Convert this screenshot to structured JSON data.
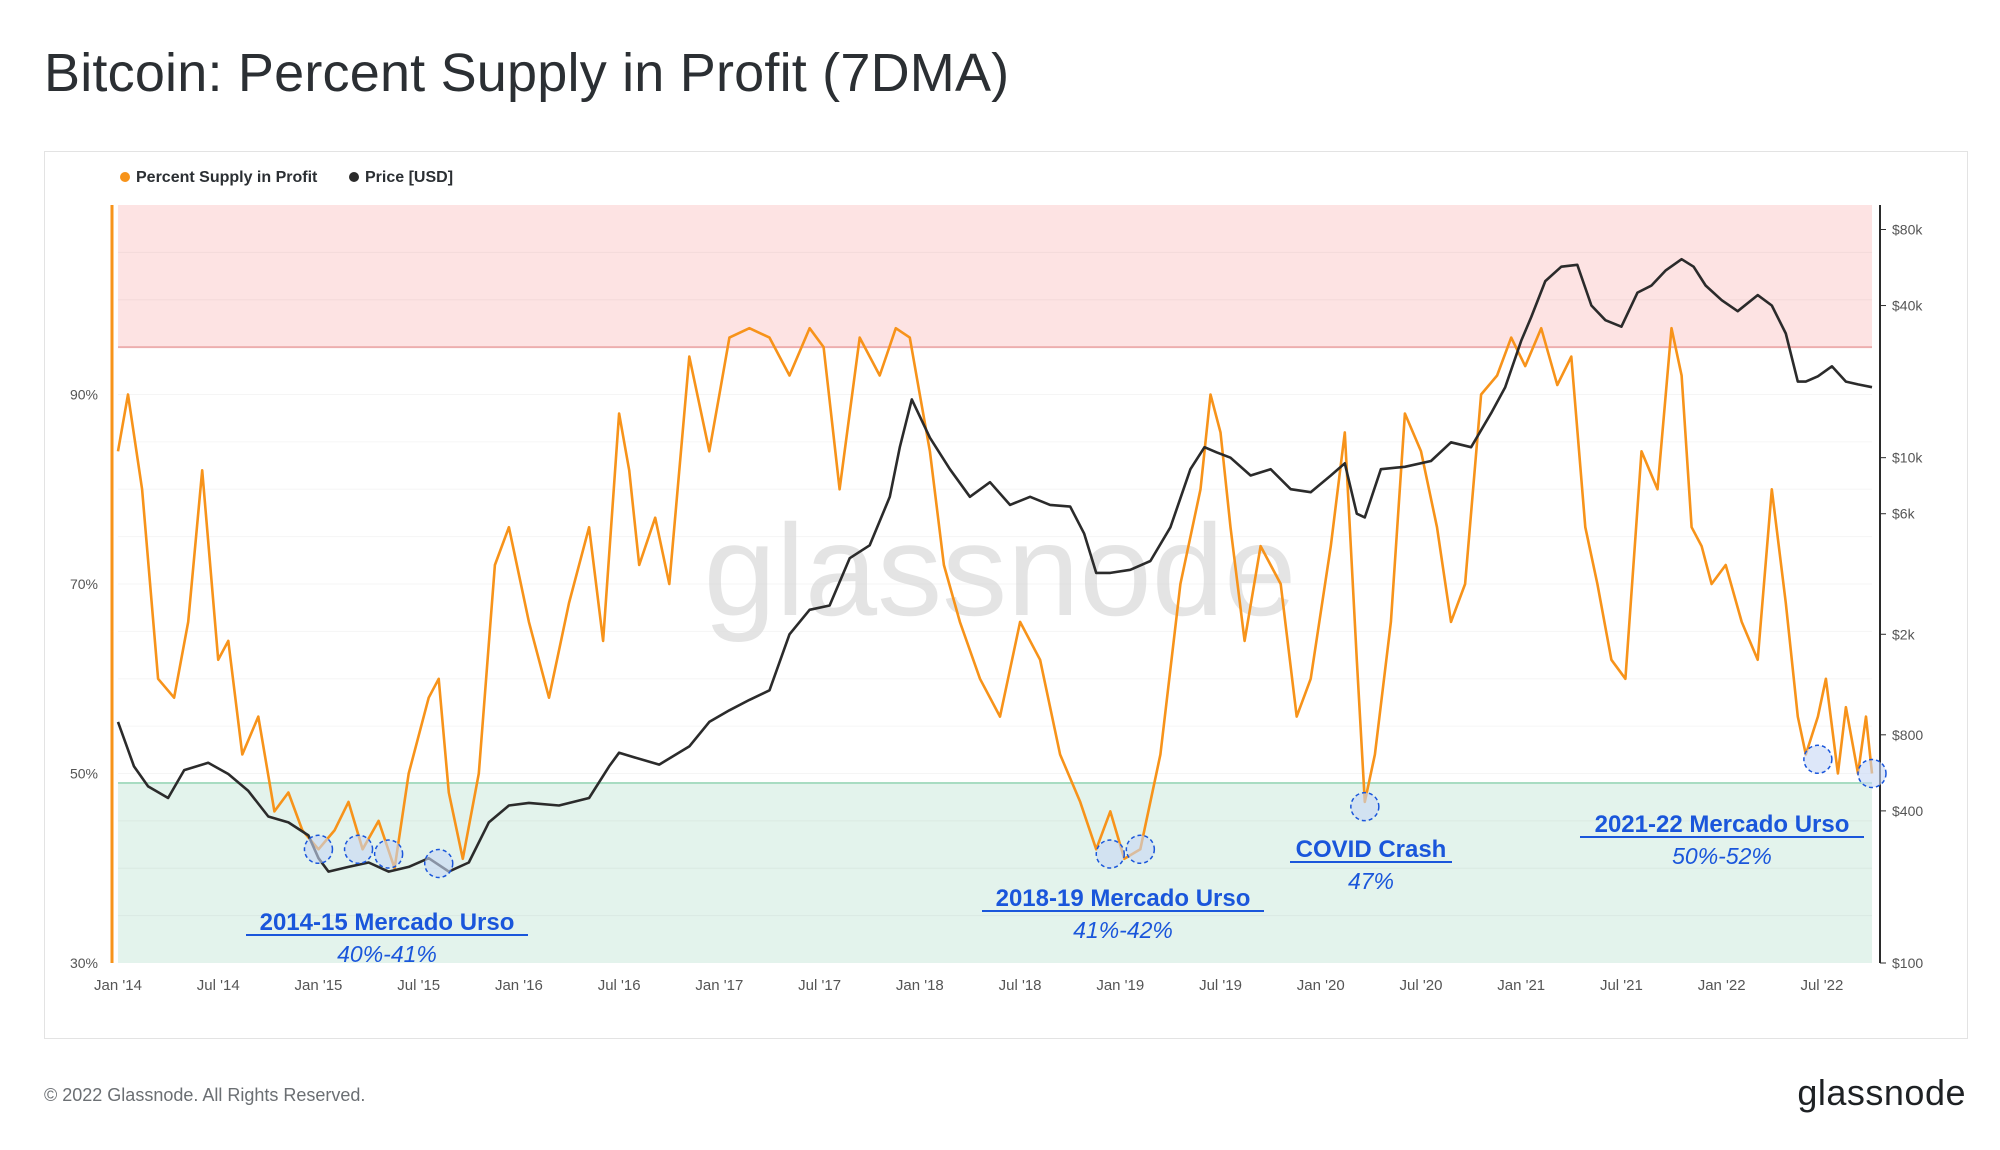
{
  "title": "Bitcoin: Percent Supply in Profit (7DMA)",
  "footer": {
    "copyright": "© 2022 Glassnode. All Rights Reserved.",
    "brand": "glassnode"
  },
  "watermark": "glassnode",
  "colors": {
    "supply": "#f7931a",
    "price": "#2b2b2b",
    "annotation": "#1a56db",
    "top_band": "#fde3e3",
    "bottom_band": "#e3f3ec"
  },
  "chart_data": {
    "type": "line",
    "legend": [
      "Percent Supply in Profit",
      "Price [USD]"
    ],
    "legend_position": "top-left",
    "x_ticks": [
      "Jan '14",
      "Jul '14",
      "Jan '15",
      "Jul '15",
      "Jan '16",
      "Jul '16",
      "Jan '17",
      "Jul '17",
      "Jan '18",
      "Jul '18",
      "Jan '19",
      "Jul '19",
      "Jan '20",
      "Jul '20",
      "Jan '21",
      "Jul '21",
      "Jan '22",
      "Jul '22"
    ],
    "x_range": [
      2014.0,
      2022.75
    ],
    "y_left": {
      "range": [
        30,
        110
      ],
      "ticks": [
        "30%",
        "50%",
        "70%",
        "90%"
      ],
      "tick_values": [
        30,
        50,
        70,
        90
      ]
    },
    "y_right": {
      "scale": "log",
      "range": [
        100,
        100000
      ],
      "ticks": [
        "$100",
        "$400",
        "$800",
        "$2k",
        "$6k",
        "$10k",
        "$40k",
        "$80k"
      ],
      "tick_values": [
        100,
        400,
        800,
        2000,
        6000,
        10000,
        40000,
        80000
      ]
    },
    "bands": {
      "upper_threshold": 95,
      "lower_threshold": 49
    },
    "series": [
      {
        "name": "Percent Supply in Profit",
        "x": [
          2014.0,
          2014.05,
          2014.12,
          2014.2,
          2014.28,
          2014.35,
          2014.42,
          2014.5,
          2014.55,
          2014.62,
          2014.7,
          2014.78,
          2014.85,
          2014.92,
          2015.0,
          2015.08,
          2015.15,
          2015.22,
          2015.3,
          2015.38,
          2015.45,
          2015.55,
          2015.6,
          2015.65,
          2015.72,
          2015.8,
          2015.88,
          2015.95,
          2016.05,
          2016.15,
          2016.25,
          2016.35,
          2016.42,
          2016.5,
          2016.55,
          2016.6,
          2016.68,
          2016.75,
          2016.85,
          2016.95,
          2017.0,
          2017.05,
          2017.15,
          2017.25,
          2017.35,
          2017.45,
          2017.52,
          2017.6,
          2017.7,
          2017.8,
          2017.88,
          2017.95,
          2018.0,
          2018.05,
          2018.12,
          2018.2,
          2018.3,
          2018.4,
          2018.5,
          2018.6,
          2018.7,
          2018.8,
          2018.88,
          2018.95,
          2019.02,
          2019.1,
          2019.2,
          2019.3,
          2019.4,
          2019.45,
          2019.5,
          2019.55,
          2019.62,
          2019.7,
          2019.8,
          2019.88,
          2019.95,
          2020.05,
          2020.12,
          2020.18,
          2020.22,
          2020.27,
          2020.35,
          2020.42,
          2020.5,
          2020.58,
          2020.65,
          2020.72,
          2020.8,
          2020.88,
          2020.95,
          2021.02,
          2021.1,
          2021.18,
          2021.25,
          2021.32,
          2021.38,
          2021.45,
          2021.52,
          2021.6,
          2021.68,
          2021.75,
          2021.8,
          2021.85,
          2021.9,
          2021.95,
          2022.02,
          2022.1,
          2022.18,
          2022.25,
          2022.32,
          2022.38,
          2022.42,
          2022.48,
          2022.52,
          2022.58,
          2022.62,
          2022.68,
          2022.72,
          2022.75
        ],
        "y": [
          84,
          90,
          80,
          60,
          58,
          66,
          82,
          62,
          64,
          52,
          56,
          46,
          48,
          44,
          42,
          44,
          47,
          42,
          45,
          40,
          50,
          58,
          60,
          48,
          41,
          50,
          72,
          76,
          66,
          58,
          68,
          76,
          64,
          88,
          82,
          72,
          77,
          70,
          94,
          84,
          90,
          96,
          97,
          96,
          92,
          97,
          95,
          80,
          96,
          92,
          97,
          96,
          90,
          84,
          72,
          66,
          60,
          56,
          66,
          62,
          52,
          47,
          42,
          46,
          41,
          42,
          52,
          70,
          80,
          90,
          86,
          76,
          64,
          74,
          70,
          56,
          60,
          74,
          86,
          62,
          47,
          52,
          66,
          88,
          84,
          76,
          66,
          70,
          90,
          92,
          96,
          93,
          97,
          91,
          94,
          76,
          70,
          62,
          60,
          84,
          80,
          97,
          92,
          76,
          74,
          70,
          72,
          66,
          62,
          80,
          68,
          56,
          52,
          56,
          60,
          50,
          57,
          50,
          56,
          50
        ],
        "color": "#f7931a"
      },
      {
        "name": "Price [USD]",
        "x": [
          2014.0,
          2014.08,
          2014.15,
          2014.25,
          2014.33,
          2014.45,
          2014.55,
          2014.65,
          2014.75,
          2014.85,
          2014.95,
          2015.0,
          2015.05,
          2015.15,
          2015.25,
          2015.35,
          2015.45,
          2015.55,
          2015.65,
          2015.75,
          2015.85,
          2015.95,
          2016.05,
          2016.2,
          2016.35,
          2016.45,
          2016.5,
          2016.58,
          2016.7,
          2016.85,
          2016.95,
          2017.05,
          2017.15,
          2017.25,
          2017.35,
          2017.45,
          2017.55,
          2017.65,
          2017.75,
          2017.85,
          2017.9,
          2017.96,
          2018.05,
          2018.15,
          2018.25,
          2018.35,
          2018.45,
          2018.55,
          2018.65,
          2018.75,
          2018.82,
          2018.88,
          2018.95,
          2019.05,
          2019.15,
          2019.25,
          2019.35,
          2019.42,
          2019.48,
          2019.55,
          2019.65,
          2019.75,
          2019.85,
          2019.95,
          2020.05,
          2020.12,
          2020.18,
          2020.22,
          2020.3,
          2020.42,
          2020.55,
          2020.65,
          2020.75,
          2020.85,
          2020.92,
          2021.0,
          2021.05,
          2021.12,
          2021.2,
          2021.28,
          2021.35,
          2021.42,
          2021.5,
          2021.58,
          2021.65,
          2021.72,
          2021.8,
          2021.86,
          2021.92,
          2022.0,
          2022.08,
          2022.18,
          2022.25,
          2022.32,
          2022.38,
          2022.42,
          2022.48,
          2022.55,
          2022.62,
          2022.68,
          2022.75
        ],
        "y": [
          900,
          600,
          500,
          450,
          580,
          620,
          560,
          480,
          380,
          360,
          320,
          260,
          230,
          240,
          250,
          230,
          240,
          260,
          230,
          250,
          360,
          420,
          430,
          420,
          450,
          600,
          680,
          650,
          610,
          720,
          900,
          1000,
          1100,
          1200,
          2000,
          2500,
          2600,
          4000,
          4500,
          7000,
          11000,
          17000,
          12000,
          9000,
          7000,
          8000,
          6500,
          7000,
          6500,
          6400,
          5000,
          3500,
          3500,
          3600,
          3900,
          5300,
          9000,
          11000,
          10500,
          10000,
          8500,
          9000,
          7500,
          7300,
          8500,
          9500,
          6000,
          5800,
          9000,
          9200,
          9700,
          11500,
          11000,
          15000,
          19000,
          29000,
          36000,
          50000,
          57000,
          58000,
          40000,
          35000,
          33000,
          45000,
          48000,
          55000,
          61000,
          57000,
          48000,
          42000,
          38000,
          44000,
          40000,
          31000,
          20000,
          20000,
          21000,
          23000,
          20000,
          19500,
          19000
        ],
        "color": "#2b2b2b"
      }
    ],
    "annotations": [
      {
        "title": "2014-15 Mercado Urso",
        "subtitle": "40%-41%"
      },
      {
        "title": "2018-19 Mercado Urso",
        "subtitle": "41%-42%"
      },
      {
        "title": "COVID Crash",
        "subtitle": "47%"
      },
      {
        "title": "2021-22 Mercado Urso",
        "subtitle": "50%-52%"
      }
    ],
    "markers": [
      {
        "x": 2015.0,
        "y": 42
      },
      {
        "x": 2015.2,
        "y": 42
      },
      {
        "x": 2015.35,
        "y": 41.5
      },
      {
        "x": 2015.6,
        "y": 40.5
      },
      {
        "x": 2018.95,
        "y": 41.5
      },
      {
        "x": 2019.1,
        "y": 42
      },
      {
        "x": 2020.22,
        "y": 46.5
      },
      {
        "x": 2022.48,
        "y": 51.5
      },
      {
        "x": 2022.75,
        "y": 50
      }
    ]
  }
}
